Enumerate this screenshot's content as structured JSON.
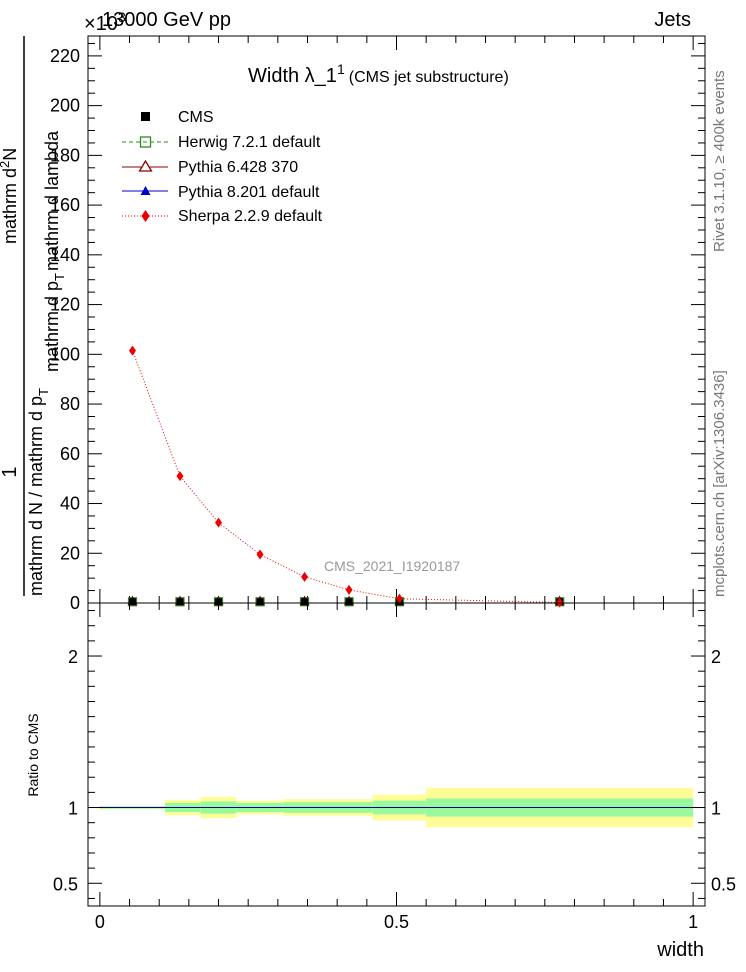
{
  "header": {
    "left": "13000 GeV pp",
    "right": "Jets",
    "exponent": "×10",
    "exponent_power": "3"
  },
  "side": {
    "rivet": "Rivet 3.1.10, ≥ 400k events",
    "mcplots": "mcplots.cern.ch [arXiv:1306.3436]"
  },
  "title": {
    "main": "Width λ_1",
    "sup": "1",
    "sub": "(CMS jet substructure)"
  },
  "watermark": "CMS_2021_I1920187",
  "ylabel_top": {
    "numerator": "1",
    "den_line1": "mathrm d N / mathrm d p",
    "den_sub1": "T",
    "den_line2": "mathrm d",
    "den_sup": "2",
    "den_line3": "N",
    "ylabel_text": "mathrm d p",
    "ylabel_sub": "T",
    "ylabel_tail": "mathrm d lambda"
  },
  "ylabel_bottom": "Ratio to CMS",
  "xlabel": "width",
  "colors": {
    "cms": "#000000",
    "herwig": "#2e8b1f",
    "pythia6": "#8b0000",
    "pythia8": "#0000cc",
    "sherpa": "#ee0000",
    "band_inner": "#99f99d",
    "band_outer": "#fefd96"
  },
  "chart_data": [
    {
      "type": "line",
      "panel": "main",
      "ylim": [
        0,
        228
      ],
      "xlim": [
        -0.02,
        1.02
      ],
      "y_multiplier": "×10^3",
      "y_ticks": [
        0,
        20,
        40,
        60,
        80,
        100,
        120,
        140,
        160,
        180,
        200,
        220
      ],
      "x_ticks": [
        0,
        0.5,
        1
      ],
      "x": [
        0.055,
        0.135,
        0.2,
        0.27,
        0.345,
        0.42,
        0.505,
        0.775
      ],
      "series": [
        {
          "name": "CMS",
          "values": [
            0.5,
            0.5,
            0.5,
            0.5,
            0.5,
            0.5,
            0.5,
            0.5
          ]
        },
        {
          "name": "Herwig 7.2.1 default",
          "values": [
            0.5,
            0.5,
            0.5,
            0.5,
            0.5,
            0.5,
            0.5,
            0.5
          ]
        },
        {
          "name": "Pythia 6.428 370",
          "values": [
            0.5,
            0.5,
            0.5,
            0.5,
            0.5,
            0.5,
            0.5,
            0.5
          ]
        },
        {
          "name": "Pythia 8.201 default",
          "values": [
            0.5,
            0.5,
            0.5,
            0.5,
            0.5,
            0.5,
            0.5,
            0.5
          ]
        },
        {
          "name": "Sherpa 2.2.9 default",
          "values": [
            101.5,
            51,
            32.3,
            19.5,
            10.5,
            5.3,
            1.7,
            0.2
          ]
        }
      ],
      "legend": "top-left"
    },
    {
      "type": "area",
      "panel": "ratio",
      "ylim": [
        0.35,
        2.35
      ],
      "y_ticks": [
        0.5,
        1,
        2
      ],
      "bins": [
        {
          "x0": 0.0,
          "x1": 0.11,
          "inner": [
            0.993,
            1.007
          ],
          "outer": [
            0.99,
            1.01
          ]
        },
        {
          "x0": 0.11,
          "x1": 0.17,
          "inner": [
            0.97,
            1.03
          ],
          "outer": [
            0.95,
            1.05
          ]
        },
        {
          "x0": 0.17,
          "x1": 0.23,
          "inner": [
            0.96,
            1.04
          ],
          "outer": [
            0.93,
            1.07
          ]
        },
        {
          "x0": 0.23,
          "x1": 0.31,
          "inner": [
            0.97,
            1.03
          ],
          "outer": [
            0.955,
            1.045
          ]
        },
        {
          "x0": 0.31,
          "x1": 0.46,
          "inner": [
            0.965,
            1.035
          ],
          "outer": [
            0.945,
            1.055
          ]
        },
        {
          "x0": 0.46,
          "x1": 0.55,
          "inner": [
            0.955,
            1.045
          ],
          "outer": [
            0.915,
            1.085
          ]
        },
        {
          "x0": 0.55,
          "x1": 1.0,
          "inner": [
            0.94,
            1.06
          ],
          "outer": [
            0.87,
            1.13
          ]
        }
      ],
      "reference": 1
    }
  ]
}
